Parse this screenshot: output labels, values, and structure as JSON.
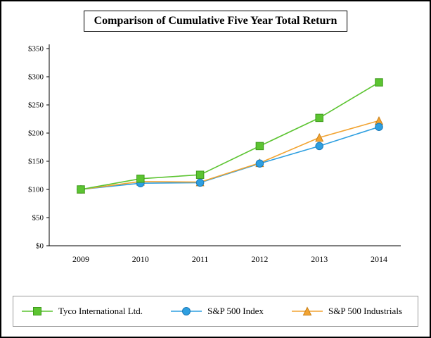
{
  "page": {
    "background": "#ffffff",
    "border_color": "#000000"
  },
  "chart_data": {
    "type": "line",
    "title": "Comparison of Cumulative Five Year Total Return",
    "categories": [
      "2009",
      "2010",
      "2011",
      "2012",
      "2013",
      "2014"
    ],
    "series": [
      {
        "name": "Tyco International Ltd.",
        "marker": "square",
        "color": "#5cc431",
        "edge_color": "#3e9a1c",
        "values": [
          100,
          119,
          126,
          177,
          227,
          290
        ]
      },
      {
        "name": "S&P 500 Index",
        "marker": "circle",
        "color": "#2e9fe0",
        "edge_color": "#1c7ab8",
        "values": [
          100,
          111,
          112,
          146,
          177,
          211
        ]
      },
      {
        "name": "S&P 500 Industrials",
        "marker": "triangle",
        "color": "#f2a432",
        "edge_color": "#c87f18",
        "values": [
          100,
          114,
          113,
          147,
          192,
          222
        ]
      }
    ],
    "ylim": [
      0,
      350
    ],
    "ytick_labels": [
      "$0",
      "$50",
      "$100",
      "$150",
      "$200",
      "$250",
      "$300",
      "$350"
    ],
    "ytick_step": 50,
    "xlabel": "",
    "ylabel": "",
    "grid": false,
    "legend_position": "bottom",
    "axis_color": "#000000"
  }
}
